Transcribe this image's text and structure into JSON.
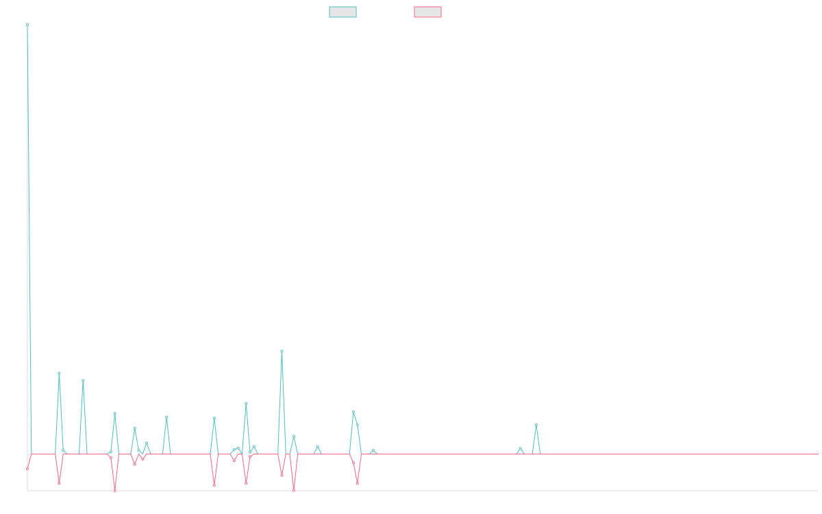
{
  "chart_data": {
    "type": "line",
    "title": "",
    "xlabel": "",
    "ylabel": "",
    "grid": false,
    "legend": {
      "position": "top-center",
      "show_labels": false
    },
    "x_count": 200,
    "ylim": [
      -10,
      117
    ],
    "series": [
      {
        "color": "#4bc0c0",
        "fill": "#e6e6e6",
        "points": [
          [
            0,
            117
          ],
          [
            8,
            22
          ],
          [
            9,
            1
          ],
          [
            14,
            20
          ],
          [
            21,
            0.6
          ],
          [
            22,
            11
          ],
          [
            27,
            7
          ],
          [
            28,
            1
          ],
          [
            30,
            3
          ],
          [
            35,
            10
          ],
          [
            47,
            9.8
          ],
          [
            52,
            1.2
          ],
          [
            53,
            1.6
          ],
          [
            55,
            13.8
          ],
          [
            56,
            0.5
          ],
          [
            57,
            2
          ],
          [
            64,
            28
          ],
          [
            67,
            4.8
          ],
          [
            73,
            2
          ],
          [
            82,
            11.5
          ],
          [
            83,
            8
          ],
          [
            87,
            1
          ],
          [
            124,
            1.5
          ],
          [
            128,
            8
          ]
        ]
      },
      {
        "color": "#ff6384",
        "fill": "#e6e6e6",
        "points": [
          [
            0,
            -4
          ],
          [
            8,
            -8
          ],
          [
            21,
            -1
          ],
          [
            22,
            -10
          ],
          [
            27,
            -2.8
          ],
          [
            29,
            -1.4
          ],
          [
            47,
            -8.5
          ],
          [
            52,
            -1.8
          ],
          [
            55,
            -8
          ],
          [
            56,
            -0.7
          ],
          [
            64,
            -5.8
          ],
          [
            67,
            -9.9
          ],
          [
            82,
            -2.4
          ],
          [
            83,
            -8
          ]
        ]
      }
    ]
  }
}
